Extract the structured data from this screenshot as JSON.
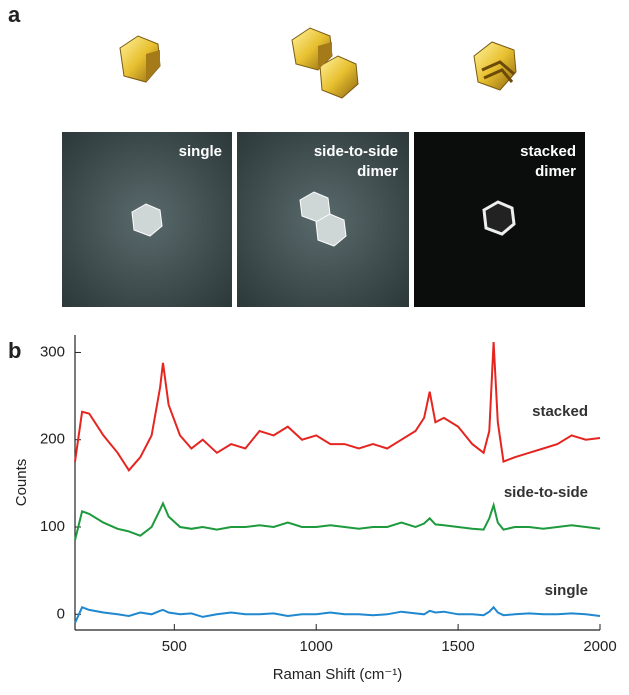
{
  "panel_a": {
    "label": "a",
    "images": [
      {
        "lines": [
          "single"
        ]
      },
      {
        "lines": [
          "side-to-side",
          "dimer"
        ]
      },
      {
        "lines": [
          "stacked",
          "dimer"
        ]
      }
    ]
  },
  "chart_data": {
    "type": "line",
    "panel_label": "b",
    "x_label": "Raman Shift (cm⁻¹)",
    "y_label": "Counts",
    "x": [
      150,
      175,
      200,
      250,
      300,
      340,
      380,
      420,
      450,
      460,
      480,
      520,
      560,
      600,
      650,
      700,
      750,
      800,
      850,
      900,
      950,
      1000,
      1050,
      1100,
      1150,
      1200,
      1250,
      1300,
      1350,
      1380,
      1400,
      1420,
      1450,
      1500,
      1550,
      1590,
      1610,
      1625,
      1640,
      1660,
      1700,
      1750,
      1800,
      1850,
      1900,
      1950,
      2000
    ],
    "xlim": [
      150,
      2000
    ],
    "xticks": [
      500,
      1000,
      1500,
      2000
    ],
    "ylim": [
      -18,
      320
    ],
    "yticks": [
      0,
      100,
      200,
      300
    ],
    "series": [
      {
        "name": "stacked",
        "color": "#e52520",
        "values": [
          175,
          232,
          230,
          205,
          185,
          165,
          180,
          205,
          260,
          288,
          240,
          205,
          190,
          200,
          185,
          195,
          190,
          210,
          205,
          215,
          200,
          205,
          195,
          195,
          190,
          195,
          190,
          200,
          210,
          225,
          255,
          220,
          225,
          215,
          195,
          185,
          210,
          312,
          220,
          175,
          180,
          185,
          190,
          195,
          205,
          200,
          202
        ]
      },
      {
        "name": "side-to-side",
        "color": "#1c9a3c",
        "values": [
          85,
          118,
          115,
          105,
          98,
          95,
          90,
          100,
          120,
          127,
          112,
          100,
          98,
          100,
          97,
          100,
          100,
          102,
          100,
          105,
          100,
          100,
          102,
          100,
          98,
          100,
          100,
          105,
          100,
          104,
          110,
          103,
          102,
          100,
          98,
          97,
          110,
          125,
          105,
          97,
          100,
          100,
          98,
          100,
          102,
          100,
          98
        ]
      },
      {
        "name": "single",
        "color": "#1f88cf",
        "values": [
          -10,
          8,
          5,
          2,
          0,
          -2,
          2,
          0,
          4,
          5,
          2,
          0,
          1,
          -3,
          0,
          2,
          0,
          0,
          1,
          -2,
          0,
          0,
          2,
          0,
          0,
          -1,
          0,
          3,
          1,
          0,
          4,
          2,
          3,
          0,
          0,
          -1,
          3,
          8,
          2,
          -1,
          0,
          1,
          0,
          0,
          1,
          0,
          -2
        ]
      }
    ]
  }
}
